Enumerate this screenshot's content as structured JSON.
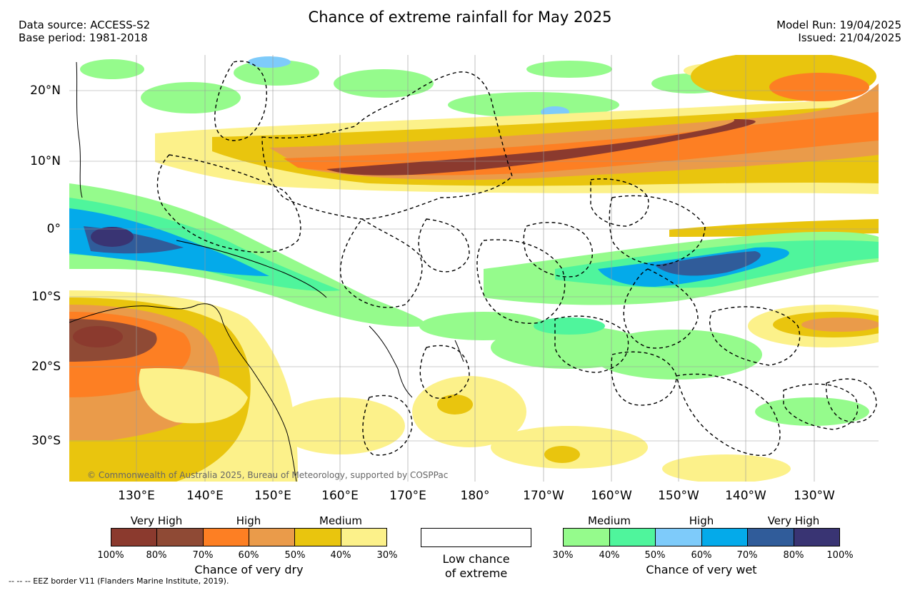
{
  "title": "Chance of extreme rainfall for May 2025",
  "header": {
    "data_source": "Data source: ACCESS-S2",
    "base_period": "Base period: 1981-2018",
    "model_run": "Model Run: 19/04/2025",
    "issued": "Issued: 21/04/2025"
  },
  "map": {
    "latitude_labels": [
      "20°N",
      "10°N",
      "0°",
      "10°S",
      "20°S",
      "30°S"
    ],
    "longitude_labels": [
      "130°E",
      "140°E",
      "150°E",
      "160°E",
      "170°E",
      "180°",
      "170°W",
      "160°W",
      "150°W",
      "140°W",
      "130°W"
    ],
    "credit": "© Commonwealth of Australia 2025, Bureau of Meteorology, supported by COSPPac"
  },
  "legend": {
    "dry": {
      "categories": [
        "Very High",
        "High",
        "Medium"
      ],
      "ticks": [
        "100%",
        "80%",
        "70%",
        "60%",
        "50%",
        "40%",
        "30%"
      ],
      "colors": [
        "#8b3a2e",
        "#8f4a35",
        "#fd7f23",
        "#ea9b4a",
        "#e9c50e",
        "#fcf18a"
      ],
      "caption": "Chance of very dry"
    },
    "neutral": {
      "caption_line1": "Low chance",
      "caption_line2": "of extreme"
    },
    "wet": {
      "categories": [
        "Medium",
        "High",
        "Very High"
      ],
      "ticks": [
        "30%",
        "40%",
        "50%",
        "60%",
        "70%",
        "80%",
        "100%"
      ],
      "colors": [
        "#95fb8c",
        "#4ff59c",
        "#7ecbfa",
        "#04aaea",
        "#305c9a",
        "#393473"
      ],
      "caption": "Chance of very wet"
    }
  },
  "footer": {
    "eez_note": "-- -- -- EEZ border V11 (Flanders Marine Institute, 2019)."
  }
}
